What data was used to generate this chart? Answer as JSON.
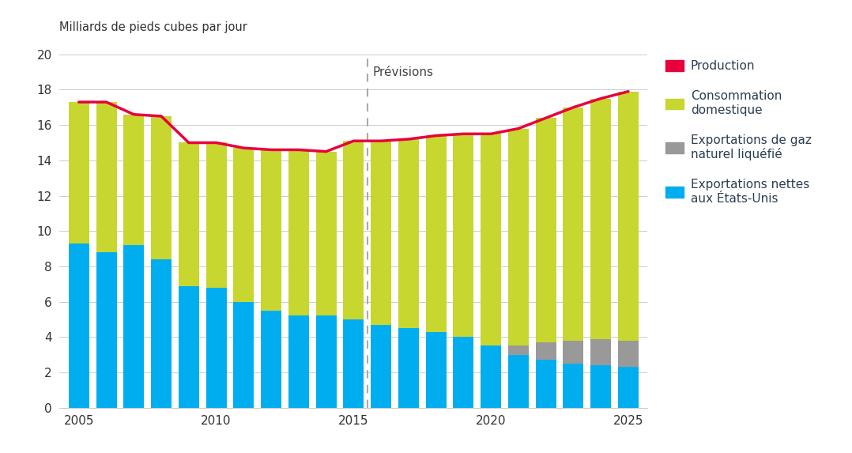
{
  "years": [
    2005,
    2006,
    2007,
    2008,
    2009,
    2010,
    2011,
    2012,
    2013,
    2014,
    2015,
    2016,
    2017,
    2018,
    2019,
    2020,
    2021,
    2022,
    2023,
    2024,
    2025
  ],
  "us_exports": [
    9.3,
    8.8,
    9.2,
    8.4,
    6.9,
    6.8,
    6.0,
    5.5,
    5.2,
    5.2,
    5.0,
    4.7,
    4.5,
    4.3,
    4.0,
    3.5,
    3.0,
    2.7,
    2.5,
    2.4,
    2.3
  ],
  "lng_exports": [
    0.0,
    0.0,
    0.0,
    0.0,
    0.0,
    0.0,
    0.0,
    0.0,
    0.0,
    0.0,
    0.0,
    0.0,
    0.0,
    0.0,
    0.0,
    0.0,
    0.5,
    1.0,
    1.3,
    1.5,
    1.5
  ],
  "production": [
    17.3,
    17.3,
    16.6,
    16.5,
    15.0,
    15.0,
    14.7,
    14.6,
    14.6,
    14.5,
    15.1,
    15.1,
    15.2,
    15.4,
    15.5,
    15.5,
    15.8,
    16.4,
    17.0,
    17.5,
    17.9
  ],
  "forecast_start": 2015.5,
  "ylabel": "Milliards de pieds cubes par jour",
  "forecast_label": "Prévisions",
  "legend_production": "Production",
  "legend_domestic": "Consommation\ndomestique",
  "legend_lng": "Exportations de gaz\nnaturel liquéfié",
  "legend_us": "Exportations nettes\naux États-Unis",
  "color_us": "#00AEEF",
  "color_lng": "#999999",
  "color_domestic": "#C8D630",
  "color_production": "#E8003D",
  "ylim": [
    0,
    20
  ],
  "yticks": [
    0,
    2,
    4,
    6,
    8,
    10,
    12,
    14,
    16,
    18,
    20
  ],
  "xticks": [
    2005,
    2010,
    2015,
    2020,
    2025
  ],
  "background_color": "#FFFFFF"
}
